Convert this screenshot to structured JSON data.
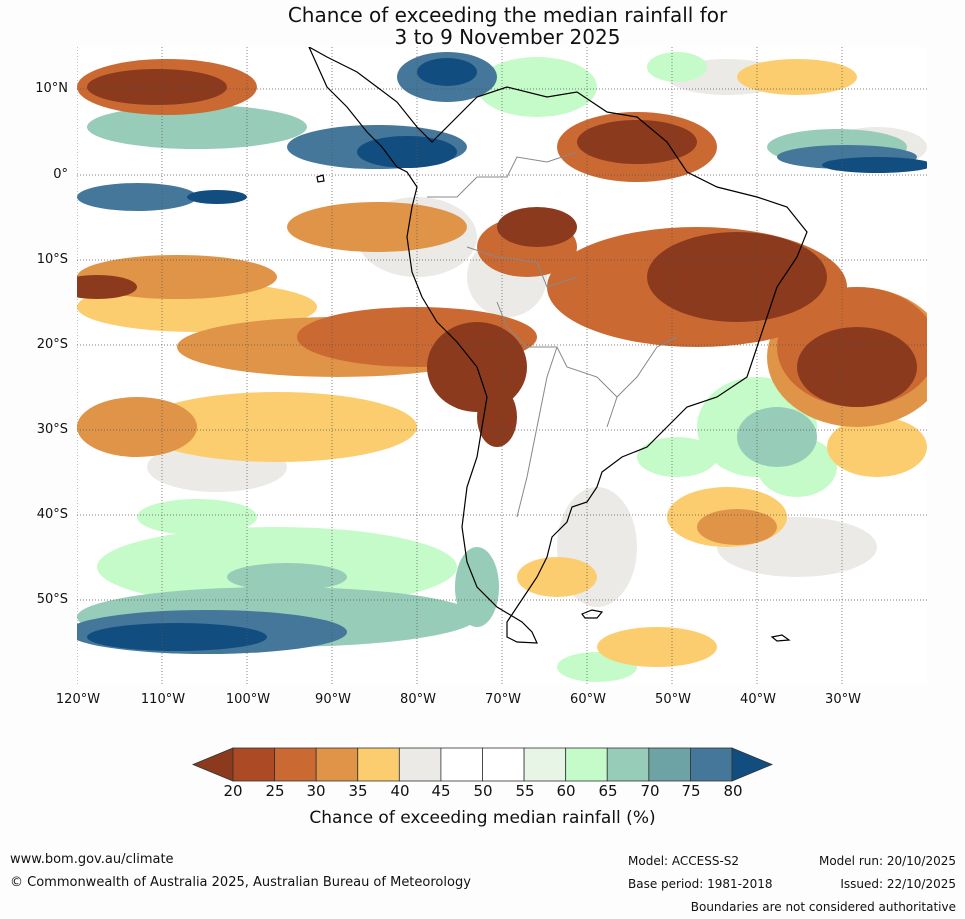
{
  "title": {
    "line1": "Chance of exceeding the median rainfall for",
    "line2": "3 to 9 November 2025"
  },
  "map": {
    "region": "South America",
    "lat_labels": [
      "10°N",
      "0°",
      "10°S",
      "20°S",
      "30°S",
      "40°S",
      "50°S"
    ],
    "lon_labels": [
      "120°W",
      "110°W",
      "100°W",
      "90°W",
      "80°W",
      "70°W",
      "60°W",
      "50°W",
      "40°W",
      "30°W"
    ]
  },
  "legend": {
    "ticks": [
      "20",
      "25",
      "30",
      "35",
      "40",
      "45",
      "50",
      "55",
      "60",
      "65",
      "70",
      "75",
      "80"
    ],
    "colors": [
      "#8b3a1e",
      "#ad4a26",
      "#cb6933",
      "#e09447",
      "#fccd6e",
      "#eceae6",
      "#ffffff",
      "#ffffff",
      "#e7f5e7",
      "#c5fbc8",
      "#97cdb8",
      "#6ea3a6",
      "#45779a",
      "#124d80"
    ],
    "title": "Chance of exceeding median rainfall (%)"
  },
  "footer": {
    "website": "www.bom.gov.au/climate",
    "copyright": "© Commonwealth of Australia 2025, Australian Bureau of Meteorology",
    "model": "Model: ACCESS-S2",
    "base_period": "Base period: 1981-2018",
    "model_run": "Model run: 20/10/2025",
    "issued": "Issued: 22/10/2025",
    "disclaimer": "Boundaries are not considered authoritative"
  }
}
